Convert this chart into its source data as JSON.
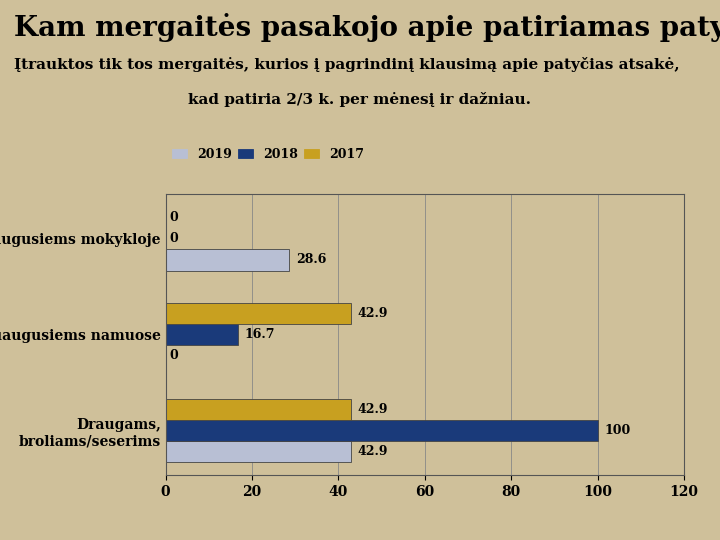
{
  "title": "Kam mergaitės pasakojo apie patiriamas patyčias? (%)",
  "subtitle1": "Įtrauktos tik tos mergaitės, kurios į pagrindinį klausimą apie patyčias atsakė,",
  "subtitle2": "kad patiria 2/3 k. per mėnesį ir dažniau.",
  "categories": [
    "Draugams,\nbroliams/seserims",
    "Suaugusiems namuose",
    "Suaugusiems mokykloje"
  ],
  "series": {
    "2019": [
      42.9,
      0,
      28.6
    ],
    "2018": [
      100,
      16.7,
      0
    ],
    "2017": [
      42.9,
      42.9,
      0
    ]
  },
  "colors": {
    "2019": "#b8bfd4",
    "2018": "#1a3a7a",
    "2017": "#c8a020"
  },
  "xlim": [
    0,
    120
  ],
  "xticks": [
    0,
    20,
    40,
    60,
    80,
    100,
    120
  ],
  "bg_color": "#cfc09a",
  "bar_height": 0.22,
  "title_fontsize": 20,
  "subtitle_fontsize": 11,
  "legend_fontsize": 9,
  "tick_fontsize": 10,
  "label_fontsize": 9
}
